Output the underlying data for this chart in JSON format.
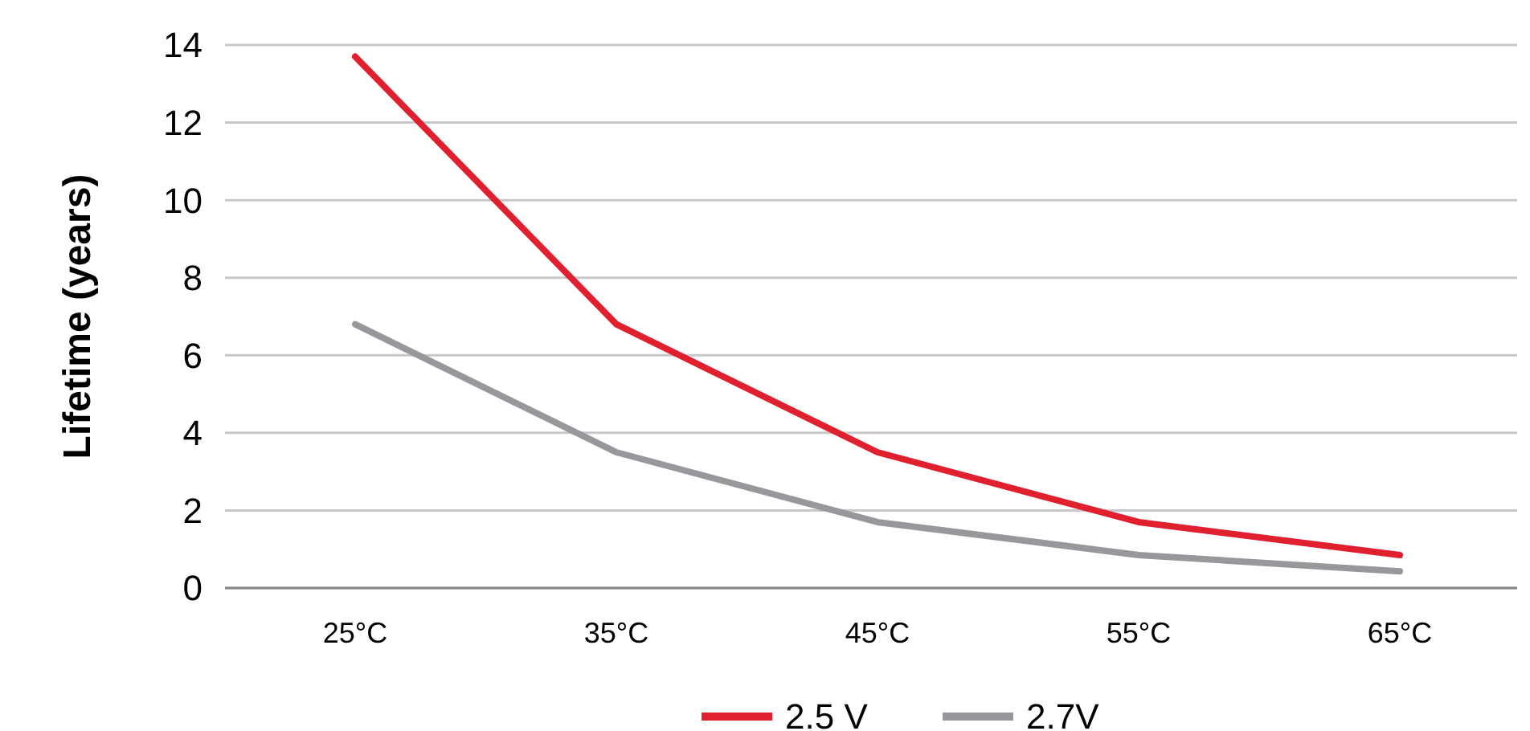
{
  "chart_data": {
    "type": "line",
    "ylabel": "Lifetime (years)",
    "categories": [
      "25°C",
      "35°C",
      "45°C",
      "55°C",
      "65°C"
    ],
    "series": [
      {
        "name": "2.5 V",
        "color": "#e0202e",
        "values": [
          13.7,
          6.8,
          3.5,
          1.7,
          0.85
        ]
      },
      {
        "name": "2.7V",
        "color": "#98989c",
        "values": [
          6.8,
          3.5,
          1.7,
          0.85,
          0.43
        ]
      }
    ],
    "ylim": [
      0,
      14
    ],
    "yticks": [
      0,
      2,
      4,
      6,
      8,
      10,
      12,
      14
    ],
    "grid": "y",
    "legend": "bottom",
    "marker": "none",
    "line_style": "solid"
  }
}
